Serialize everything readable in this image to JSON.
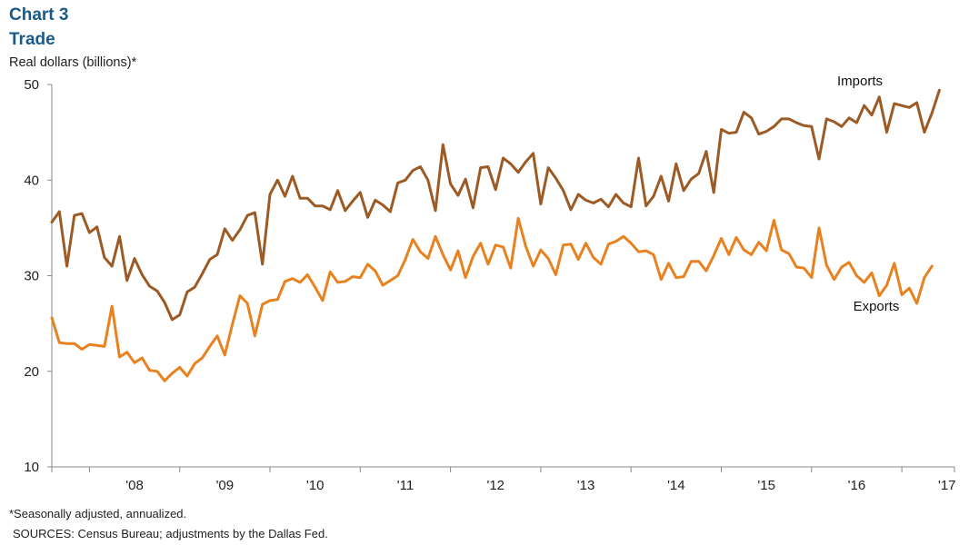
{
  "header": {
    "chart_number": "Chart 3",
    "title": "Trade",
    "ylabel": "Real dollars  (billions)*"
  },
  "footer": {
    "note": "*Seasonally adjusted, annualized.",
    "sources": "SOURCES:  Census Bureau; adjustments by the Dallas Fed."
  },
  "chart_data": {
    "type": "line",
    "title": "Trade",
    "ylabel": "Real dollars  (billions)*",
    "ylim": [
      10,
      50
    ],
    "yticks": [
      10,
      20,
      30,
      40,
      50
    ],
    "x_start": 2007.583,
    "x_step_months": 1,
    "xlim": [
      2007.583,
      2017.583
    ],
    "xtick_labels": [
      "'08",
      "'09",
      "'10",
      "'11",
      "'12",
      "'13",
      "'14",
      "'15",
      "'16",
      "'17"
    ],
    "xtick_years": [
      2008,
      2009,
      2010,
      2011,
      2012,
      2013,
      2014,
      2015,
      2016,
      2017
    ],
    "grid": false,
    "legend": "inline labels",
    "series": [
      {
        "name": "Imports",
        "color": "#9c5a25",
        "values": [
          35.6,
          36.7,
          31.0,
          36.3,
          36.5,
          34.5,
          35.1,
          31.9,
          31.0,
          34.1,
          29.5,
          31.8,
          30.1,
          28.9,
          28.4,
          27.2,
          25.4,
          25.9,
          28.3,
          28.8,
          30.2,
          31.7,
          32.2,
          34.9,
          33.7,
          34.8,
          36.3,
          36.6,
          31.2,
          38.5,
          40.0,
          38.3,
          40.4,
          38.1,
          38.1,
          37.3,
          37.3,
          36.9,
          38.9,
          36.8,
          37.8,
          38.7,
          36.1,
          37.9,
          37.4,
          36.7,
          39.7,
          40.0,
          41.0,
          41.4,
          40.0,
          36.8,
          43.7,
          39.6,
          38.4,
          40.1,
          37.1,
          41.3,
          41.4,
          39.0,
          42.3,
          41.7,
          40.8,
          41.9,
          42.8,
          37.5,
          41.3,
          40.2,
          38.9,
          36.9,
          38.5,
          37.9,
          37.6,
          38.0,
          37.2,
          38.5,
          37.6,
          37.2,
          42.3,
          37.3,
          38.3,
          40.4,
          37.8,
          41.7,
          38.9,
          40.1,
          40.7,
          43.0,
          38.7,
          45.3,
          44.9,
          45.0,
          47.1,
          46.5,
          44.8,
          45.1,
          45.6,
          46.4,
          46.4,
          46.0,
          45.7,
          45.6,
          42.2,
          46.4,
          46.1,
          45.6,
          46.5,
          46.0,
          47.8,
          46.8,
          48.7,
          45.0,
          48.0,
          47.8,
          47.6,
          48.1,
          45.0,
          47.0,
          49.4
        ]
      },
      {
        "name": "Exports",
        "color": "#e8811f",
        "values": [
          25.6,
          23.0,
          22.9,
          22.9,
          22.3,
          22.8,
          22.7,
          22.6,
          26.8,
          21.5,
          22.0,
          20.9,
          21.4,
          20.1,
          20.0,
          19.0,
          19.8,
          20.4,
          19.5,
          20.8,
          21.4,
          22.6,
          23.7,
          21.7,
          24.9,
          27.9,
          27.1,
          23.7,
          27.0,
          27.4,
          27.5,
          29.4,
          29.7,
          29.3,
          30.1,
          28.8,
          27.4,
          30.4,
          29.3,
          29.4,
          29.9,
          29.8,
          31.2,
          30.5,
          29.0,
          29.5,
          30.0,
          31.7,
          33.8,
          32.5,
          31.8,
          34.1,
          32.2,
          30.6,
          32.6,
          29.8,
          32.0,
          33.4,
          31.2,
          33.2,
          33.0,
          30.8,
          36.0,
          33.1,
          31.0,
          32.7,
          31.8,
          30.1,
          33.2,
          33.3,
          31.7,
          33.4,
          31.9,
          31.2,
          33.3,
          33.6,
          34.1,
          33.4,
          32.5,
          32.6,
          32.2,
          29.6,
          31.3,
          29.8,
          29.9,
          31.5,
          31.5,
          30.5,
          32.1,
          33.9,
          32.2,
          34.0,
          32.7,
          32.2,
          33.5,
          32.6,
          35.8,
          32.7,
          32.3,
          30.9,
          30.8,
          29.8,
          35.0,
          31.1,
          29.6,
          30.9,
          31.4,
          30.0,
          29.3,
          30.3,
          27.9,
          29.0,
          31.3,
          28.0,
          28.7,
          27.1,
          29.8,
          31.0
        ]
      }
    ]
  }
}
